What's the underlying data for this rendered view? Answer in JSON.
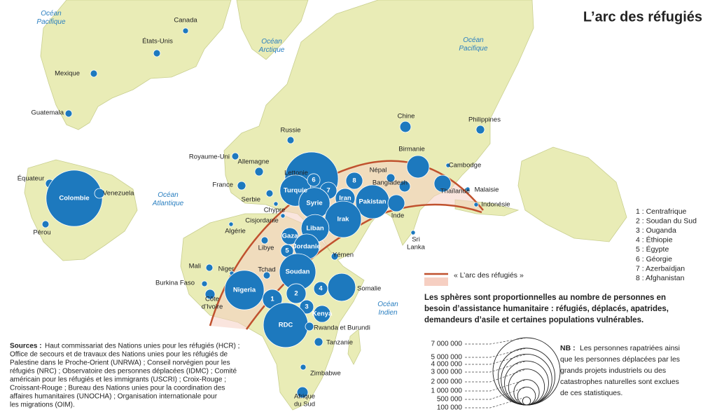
{
  "title": "L’arc des réfugiés",
  "oceans": [
    "Océan Pacifique",
    "Océan Arctique",
    "Océan Pacifique",
    "Océan Atlantique",
    "Océan Indien"
  ],
  "markers": [
    {
      "label": "Canada",
      "value": 50000
    },
    {
      "label": "États-Unis",
      "value": 75000
    },
    {
      "label": "Mexique",
      "value": 75000
    },
    {
      "label": "Guatemala",
      "value": 75000
    },
    {
      "label": "Équateur",
      "value": 110000
    },
    {
      "label": "Colombie",
      "value": 4900000
    },
    {
      "label": "Venezuela",
      "value": 150000
    },
    {
      "label": "Pérou",
      "value": 75000
    },
    {
      "label": "Chine",
      "value": 190000
    },
    {
      "label": "Philippines",
      "value": 110000
    },
    {
      "label": "Russie",
      "value": 75000
    },
    {
      "label": "Royaume-Uni",
      "value": 75000
    },
    {
      "label": "Allemagne",
      "value": 110000
    },
    {
      "label": "Lettonie",
      "value": 30000
    },
    {
      "label": "France",
      "value": 110000
    },
    {
      "label": "Serbie",
      "value": 75000
    },
    {
      "label": null,
      "value": 4400000
    },
    {
      "label": "Turquie",
      "value": 1500000
    },
    {
      "label": "6",
      "value": 250000
    },
    {
      "label": "7",
      "value": 440000
    },
    {
      "label": "8",
      "value": 440000
    },
    {
      "label": "Syrie",
      "value": 1500000
    },
    {
      "label": "Iran",
      "value": 600000
    },
    {
      "label": "Pakistan",
      "value": 1750000
    },
    {
      "label": "Irak",
      "value": 2050000
    },
    {
      "label": "Inde",
      "value": 440000
    },
    {
      "label": "Népal",
      "value": 110000
    },
    {
      "label": "Bangladesh",
      "value": 190000
    },
    {
      "label": "Birmanie",
      "value": 780000
    },
    {
      "label": "Cambodge",
      "value": 30000
    },
    {
      "label": "Thaïlande",
      "value": 440000
    },
    {
      "label": "Malaisie",
      "value": 30000
    },
    {
      "label": "Indonésie",
      "value": 30000
    },
    {
      "label": "Sri Lanka",
      "value": 30000
    },
    {
      "label": "Chypre",
      "value": 30000
    },
    {
      "label": "Cisjordanie",
      "value": 30000
    },
    {
      "label": "Gaza",
      "value": 440000
    },
    {
      "label": "Liban",
      "value": 1200000
    },
    {
      "label": "Jordanie",
      "value": 1000000
    },
    {
      "label": "Libye",
      "value": 75000
    },
    {
      "label": "5",
      "value": 250000
    },
    {
      "label": "Yémen",
      "value": 75000
    },
    {
      "label": "Algérie",
      "value": 30000
    },
    {
      "label": "Mali",
      "value": 75000
    },
    {
      "label": "Niger",
      "value": 30000
    },
    {
      "label": "Tchad",
      "value": 75000
    },
    {
      "label": "Soudan",
      "value": 2050000
    },
    {
      "label": "Burkina Faso",
      "value": 50000
    },
    {
      "label": "Côte d’Ivoire",
      "value": 150000
    },
    {
      "label": "Nigeria",
      "value": 2400000
    },
    {
      "label": "4",
      "value": 300000
    },
    {
      "label": "Somalie",
      "value": 1200000
    },
    {
      "label": "1",
      "value": 600000
    },
    {
      "label": "2",
      "value": 600000
    },
    {
      "label": "3",
      "value": 300000
    },
    {
      "label": "Kenya",
      "value": 440000
    },
    {
      "label": "RDC",
      "value": 3100000
    },
    {
      "label": "Rwanda et Burundi",
      "value": 110000
    },
    {
      "label": "Tanzanie",
      "value": 110000
    },
    {
      "label": "Zimbabwe",
      "value": 50000
    },
    {
      "label": "Afrique du Sud",
      "value": 190000
    }
  ],
  "numbered_legend": [
    "1 : Centrafrique",
    "2 : Soudan du Sud",
    "3 : Ouganda",
    "4 : Éthiopie",
    "5 : Égypte",
    "6 : Géorgie",
    "7 : Azerbaïdjan",
    "8 : Afghanistan"
  ],
  "arc_legend": "« L’arc des réfugiés »",
  "note_lines": [
    "Les sphères sont proportionnelles au nombre de personnes en",
    "besoin d’assistance humanitaire : réfugiés, déplacés, apatrides,",
    "demandeurs d’asile et certaines populations vulnérables."
  ],
  "size_scale": [
    {
      "value": 7000000,
      "label": "7 000 000"
    },
    {
      "value": 5000000,
      "label": "5 000 000"
    },
    {
      "value": 4000000,
      "label": "4 000 000"
    },
    {
      "value": 3000000,
      "label": "3 000 000"
    },
    {
      "value": 2000000,
      "label": "2 000 000"
    },
    {
      "value": 1000000,
      "label": "1 000 000"
    },
    {
      "value": 500000,
      "label": "500 000"
    },
    {
      "value": 100000,
      "label": "100 000"
    }
  ],
  "nb_label": "NB :",
  "nb_lines": [
    "Les personnes rapatriées ainsi",
    "que les personnes déplacées par les",
    "grands projets industriels ou des",
    "catastrophes naturelles sont exclues",
    "de ces statistiques."
  ],
  "sources_label": "Sources :",
  "sources_lines": [
    "Haut commissariat des Nations unies pour les réfugiés (HCR) ;",
    "Office de secours et de travaux des Nations unies pour les réfugiés de",
    "Palestine dans le Proche-Orient (UNRWA) ;  Conseil norvégien pour les",
    "réfugiés (NRC) ; Observatoire des personnes déplacées (IDMC) ; Comité",
    "américain pour les réfugiés et les immigrants (USCRI) ; Croix-Rouge ;",
    "Croissant-Rouge ; Bureau des Nations unies pour la coordination des",
    "affaires humanitaires (UNOCHA) ; Organisation internationale pour",
    "les migrations (OIM)."
  ]
}
